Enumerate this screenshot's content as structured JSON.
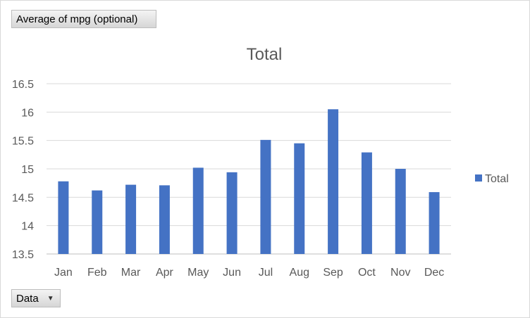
{
  "chart_data": {
    "type": "bar",
    "title": "Total",
    "categories": [
      "Jan",
      "Feb",
      "Mar",
      "Apr",
      "May",
      "Jun",
      "Jul",
      "Aug",
      "Sep",
      "Oct",
      "Nov",
      "Dec"
    ],
    "series": [
      {
        "name": "Total",
        "values": [
          14.78,
          14.62,
          14.72,
          14.71,
          15.02,
          14.94,
          15.51,
          15.45,
          16.05,
          15.29,
          15.0,
          14.59
        ],
        "color": "#4472C4"
      }
    ],
    "ylim": [
      13.5,
      16.5
    ],
    "yticks": [
      "13.5",
      "14",
      "14.5",
      "15",
      "15.5",
      "16",
      "16.5"
    ],
    "grid": true,
    "legend": "right"
  },
  "pivot": {
    "value_field_label": "Average of mpg (optional)",
    "axis_field_label": "Data"
  }
}
